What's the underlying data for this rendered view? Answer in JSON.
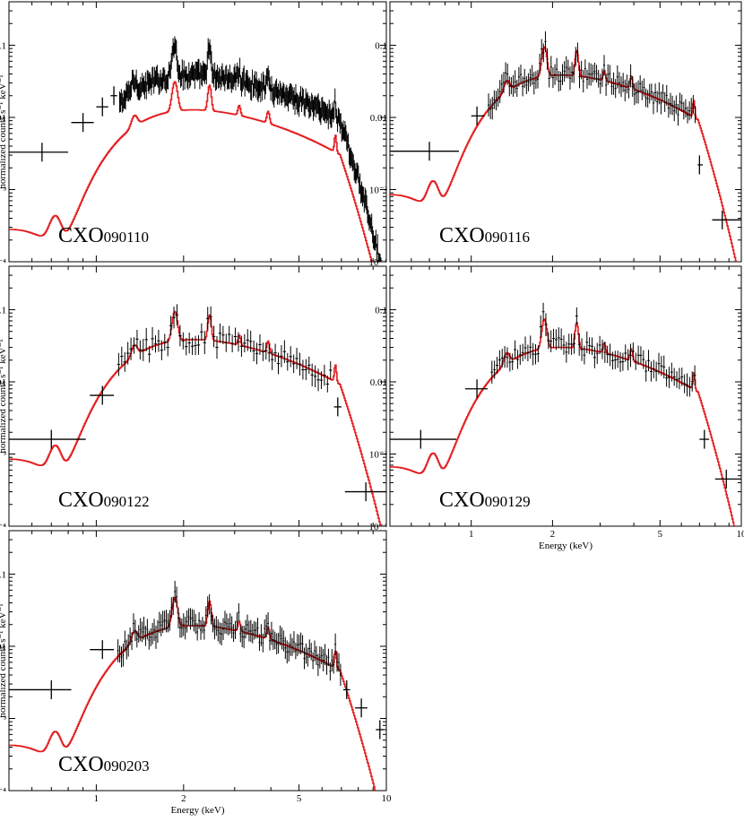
{
  "figure": {
    "model_color": "#e31a1c",
    "data_color": "#000000"
  },
  "chart_data": [
    {
      "type": "scatter",
      "panel_label": "CXO090110",
      "label_prefix": "CXO",
      "label_suffix": "090110",
      "xscale": "log",
      "yscale": "log",
      "xlim": [
        0.5,
        10
      ],
      "ylim": [
        0.0001,
        0.4
      ],
      "xticks": [
        "1",
        "2",
        "5",
        "10"
      ],
      "show_xticklabels": false,
      "yticks": [
        "0.1",
        "0.01",
        "10⁻³",
        "10⁻⁴"
      ],
      "ylabel": "normalized counts s⁻¹ keV⁻¹",
      "xlabel": "",
      "model_scale": 0.33,
      "data_noise": 0.22,
      "series": [
        {
          "name": "data",
          "kind": "binned-points",
          "points": [
            {
              "x": 0.65,
              "xlo": 0.5,
              "xhi": 0.8,
              "y": 0.0033
            },
            {
              "x": 0.9,
              "xlo": 0.82,
              "xhi": 0.98,
              "y": 0.0085
            },
            {
              "x": 1.05,
              "xlo": 1.0,
              "xhi": 1.1,
              "y": 0.014
            },
            {
              "x": 1.15,
              "xlo": 1.12,
              "xhi": 1.18,
              "y": 0.02
            }
          ],
          "dense_start": 1.2,
          "dense_end": 10,
          "dense_bins": 320
        },
        {
          "name": "model",
          "kind": "line"
        }
      ]
    },
    {
      "type": "scatter",
      "panel_label": "CXO090116",
      "label_prefix": "CXO",
      "label_suffix": "090116",
      "xscale": "log",
      "yscale": "log",
      "xlim": [
        0.5,
        10
      ],
      "ylim": [
        0.0001,
        0.4
      ],
      "xticks": [
        "1",
        "2",
        "5",
        "10"
      ],
      "show_xticklabels": false,
      "yticks": [
        "0.1",
        "0.01",
        "10⁻³",
        "10⁻⁴"
      ],
      "ylabel": "",
      "xlabel": "",
      "model_scale": 1.0,
      "data_noise": 0.25,
      "series": [
        {
          "name": "data",
          "kind": "binned-points",
          "points": [
            {
              "x": 0.7,
              "xlo": 0.5,
              "xhi": 0.9,
              "y": 0.0034
            },
            {
              "x": 1.05,
              "xlo": 1.0,
              "xhi": 1.12,
              "y": 0.0105
            },
            {
              "x": 7.0,
              "xlo": 6.9,
              "xhi": 7.2,
              "y": 0.0022
            },
            {
              "x": 8.5,
              "xlo": 7.8,
              "xhi": 10.0,
              "y": 0.00038
            }
          ],
          "dense_start": 1.15,
          "dense_end": 6.8,
          "dense_bins": 110
        },
        {
          "name": "model",
          "kind": "line"
        }
      ]
    },
    {
      "type": "scatter",
      "panel_label": "CXO090122",
      "label_prefix": "CXO",
      "label_suffix": "090122",
      "xscale": "log",
      "yscale": "log",
      "xlim": [
        0.5,
        10
      ],
      "ylim": [
        0.0001,
        0.4
      ],
      "xticks": [
        "1",
        "2",
        "5",
        "10"
      ],
      "show_xticklabels": false,
      "yticks": [
        "0.1",
        "0.01",
        "10⁻³",
        "10⁻⁴"
      ],
      "ylabel": "normalized counts s⁻¹ keV⁻¹",
      "xlabel": "",
      "model_scale": 1.0,
      "data_noise": 0.28,
      "series": [
        {
          "name": "data",
          "kind": "binned-points",
          "points": [
            {
              "x": 0.7,
              "xlo": 0.5,
              "xhi": 0.92,
              "y": 0.0016
            },
            {
              "x": 1.05,
              "xlo": 0.95,
              "xhi": 1.15,
              "y": 0.0065
            },
            {
              "x": 6.8,
              "xlo": 6.6,
              "xhi": 7.0,
              "y": 0.0045
            },
            {
              "x": 8.5,
              "xlo": 7.2,
              "xhi": 10.0,
              "y": 0.0003
            }
          ],
          "dense_start": 1.18,
          "dense_end": 6.5,
          "dense_bins": 70
        },
        {
          "name": "model",
          "kind": "line"
        }
      ]
    },
    {
      "type": "scatter",
      "panel_label": "CXO090129",
      "label_prefix": "CXO",
      "label_suffix": "090129",
      "xscale": "log",
      "yscale": "log",
      "xlim": [
        0.5,
        10
      ],
      "ylim": [
        0.0001,
        0.4
      ],
      "xticks": [
        "1",
        "2",
        "5",
        "10"
      ],
      "show_xticklabels": true,
      "yticks": [
        "0.1",
        "0.01",
        "10⁻³",
        "10⁻⁴"
      ],
      "ylabel": "",
      "xlabel": "Energy (keV)",
      "model_scale": 0.78,
      "data_noise": 0.26,
      "series": [
        {
          "name": "data",
          "kind": "binned-points",
          "points": [
            {
              "x": 0.65,
              "xlo": 0.5,
              "xhi": 0.88,
              "y": 0.0016
            },
            {
              "x": 1.05,
              "xlo": 0.95,
              "xhi": 1.15,
              "y": 0.008
            },
            {
              "x": 7.3,
              "xlo": 7.0,
              "xhi": 7.6,
              "y": 0.0016
            },
            {
              "x": 8.8,
              "xlo": 8.0,
              "xhi": 10.0,
              "y": 0.00045
            }
          ],
          "dense_start": 1.18,
          "dense_end": 6.8,
          "dense_bins": 80
        },
        {
          "name": "model",
          "kind": "line"
        }
      ]
    },
    {
      "type": "scatter",
      "panel_label": "CXO090203",
      "label_prefix": "CXO",
      "label_suffix": "090203",
      "xscale": "log",
      "yscale": "log",
      "xlim": [
        0.5,
        10
      ],
      "ylim": [
        0.0001,
        0.4
      ],
      "xticks": [
        "1",
        "2",
        "5",
        "10"
      ],
      "show_xticklabels": true,
      "yticks": [
        "0.1",
        "0.01",
        "10⁻³",
        "10⁻⁴"
      ],
      "ylabel": "normalized counts s⁻¹ keV⁻¹",
      "xlabel": "Energy (keV)",
      "model_scale": 0.5,
      "data_noise": 0.25,
      "series": [
        {
          "name": "data",
          "kind": "binned-points",
          "points": [
            {
              "x": 0.7,
              "xlo": 0.5,
              "xhi": 0.82,
              "y": 0.0025
            },
            {
              "x": 1.05,
              "xlo": 0.95,
              "xhi": 1.15,
              "y": 0.009
            },
            {
              "x": 7.3,
              "xlo": 7.1,
              "xhi": 7.5,
              "y": 0.0025
            },
            {
              "x": 8.2,
              "xlo": 7.8,
              "xhi": 8.6,
              "y": 0.0014
            },
            {
              "x": 9.5,
              "xlo": 9.2,
              "xhi": 9.8,
              "y": 0.0007
            }
          ],
          "dense_start": 1.18,
          "dense_end": 7.0,
          "dense_bins": 130
        },
        {
          "name": "model",
          "kind": "line"
        }
      ]
    }
  ]
}
